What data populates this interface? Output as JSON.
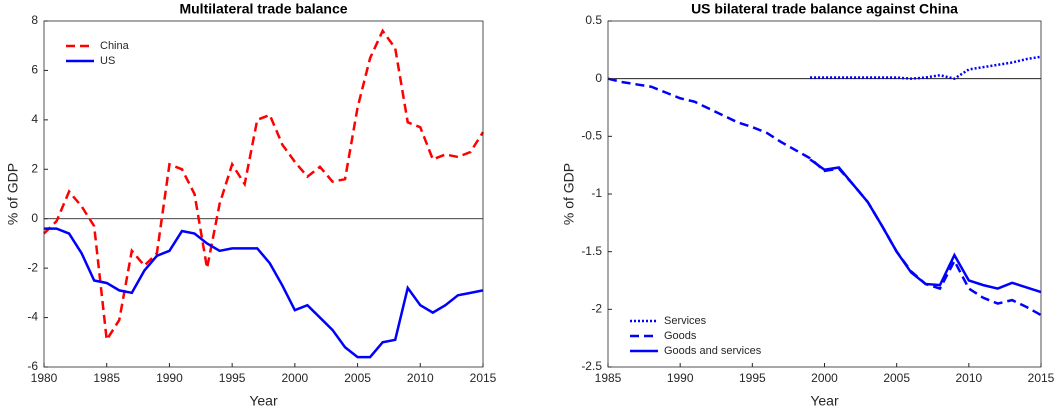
{
  "chart_data": [
    {
      "type": "line",
      "title": "Multilateral trade balance",
      "x_label": "Year",
      "y_label": "% of GDP",
      "x": [
        1980,
        1981,
        1982,
        1983,
        1984,
        1985,
        1986,
        1987,
        1988,
        1989,
        1990,
        1991,
        1992,
        1993,
        1994,
        1995,
        1996,
        1997,
        1998,
        1999,
        2000,
        2001,
        2002,
        2003,
        2004,
        2005,
        2006,
        2007,
        2008,
        2009,
        2010,
        2011,
        2012,
        2013,
        2014,
        2015
      ],
      "series": [
        {
          "name": "China",
          "color": "#ff0000",
          "style": "dashed",
          "values": [
            -0.6,
            -0.1,
            1.1,
            0.5,
            -0.3,
            -4.9,
            -4.1,
            -1.3,
            -1.9,
            -1.4,
            2.2,
            2.0,
            1.0,
            -2.0,
            0.6,
            2.2,
            1.4,
            4.0,
            4.2,
            3.0,
            2.3,
            1.7,
            2.1,
            1.5,
            1.6,
            4.5,
            6.5,
            7.6,
            6.9,
            3.9,
            3.7,
            2.4,
            2.6,
            2.5,
            2.7,
            3.5
          ]
        },
        {
          "name": "US",
          "color": "#0000ff",
          "style": "solid",
          "values": [
            -0.4,
            -0.4,
            -0.6,
            -1.4,
            -2.5,
            -2.6,
            -2.9,
            -3.0,
            -2.1,
            -1.5,
            -1.3,
            -0.5,
            -0.6,
            -1.0,
            -1.3,
            -1.2,
            -1.2,
            -1.2,
            -1.8,
            -2.7,
            -3.7,
            -3.5,
            -4.0,
            -4.5,
            -5.2,
            -5.6,
            -5.6,
            -5.0,
            -4.9,
            -2.8,
            -3.5,
            -3.8,
            -3.5,
            -3.1,
            -3.0,
            -2.9
          ]
        }
      ],
      "xlim": [
        1980,
        2015
      ],
      "xticks": [
        1980,
        1985,
        1990,
        1995,
        2000,
        2005,
        2010,
        2015
      ],
      "ylim": [
        -6,
        8
      ],
      "yticks": [
        -6,
        -4,
        -2,
        0,
        2,
        4,
        6,
        8
      ],
      "zero_line": true,
      "legend": "upper-left"
    },
    {
      "type": "line",
      "title": "US bilateral trade balance against China",
      "x_label": "Year",
      "y_label": "% of GDP",
      "x": [
        1985,
        1986,
        1987,
        1988,
        1989,
        1990,
        1991,
        1992,
        1993,
        1994,
        1995,
        1996,
        1997,
        1998,
        1999,
        2000,
        2001,
        2002,
        2003,
        2004,
        2005,
        2006,
        2007,
        2008,
        2009,
        2010,
        2011,
        2012,
        2013,
        2014,
        2015
      ],
      "series": [
        {
          "name": "Services",
          "color": "#0000ff",
          "style": "dotted",
          "values": [
            null,
            null,
            null,
            null,
            null,
            null,
            null,
            null,
            null,
            null,
            null,
            null,
            null,
            null,
            0.01,
            0.01,
            0.01,
            0.01,
            0.01,
            0.01,
            0.01,
            0.0,
            0.01,
            0.03,
            0.0,
            0.08,
            0.1,
            0.12,
            0.14,
            0.17,
            0.19
          ]
        },
        {
          "name": "Goods",
          "color": "#0000ff",
          "style": "dashed",
          "values": [
            0,
            -0.03,
            -0.05,
            -0.07,
            -0.12,
            -0.17,
            -0.2,
            -0.26,
            -0.32,
            -0.38,
            -0.42,
            -0.47,
            -0.55,
            -0.62,
            -0.69,
            -0.8,
            -0.78,
            -0.92,
            -1.07,
            -1.28,
            -1.5,
            -1.67,
            -1.78,
            -1.82,
            -1.58,
            -1.82,
            -1.9,
            -1.95,
            -1.92,
            -1.98,
            -2.05
          ]
        },
        {
          "name": "Goods and services",
          "color": "#0000ff",
          "style": "solid",
          "values": [
            null,
            null,
            null,
            null,
            null,
            null,
            null,
            null,
            null,
            null,
            null,
            null,
            null,
            null,
            -0.7,
            -0.79,
            -0.77,
            -0.92,
            -1.07,
            -1.28,
            -1.5,
            -1.68,
            -1.78,
            -1.79,
            -1.53,
            -1.75,
            -1.79,
            -1.82,
            -1.77,
            -1.81,
            -1.85
          ]
        }
      ],
      "xlim": [
        1985,
        2015
      ],
      "xticks": [
        1985,
        1990,
        1995,
        2000,
        2005,
        2010,
        2015
      ],
      "ylim": [
        -2.5,
        0.5
      ],
      "yticks": [
        -2.5,
        -2,
        -1.5,
        -1,
        -0.5,
        0,
        0.5
      ],
      "zero_line": true,
      "legend": "lower-left"
    }
  ]
}
